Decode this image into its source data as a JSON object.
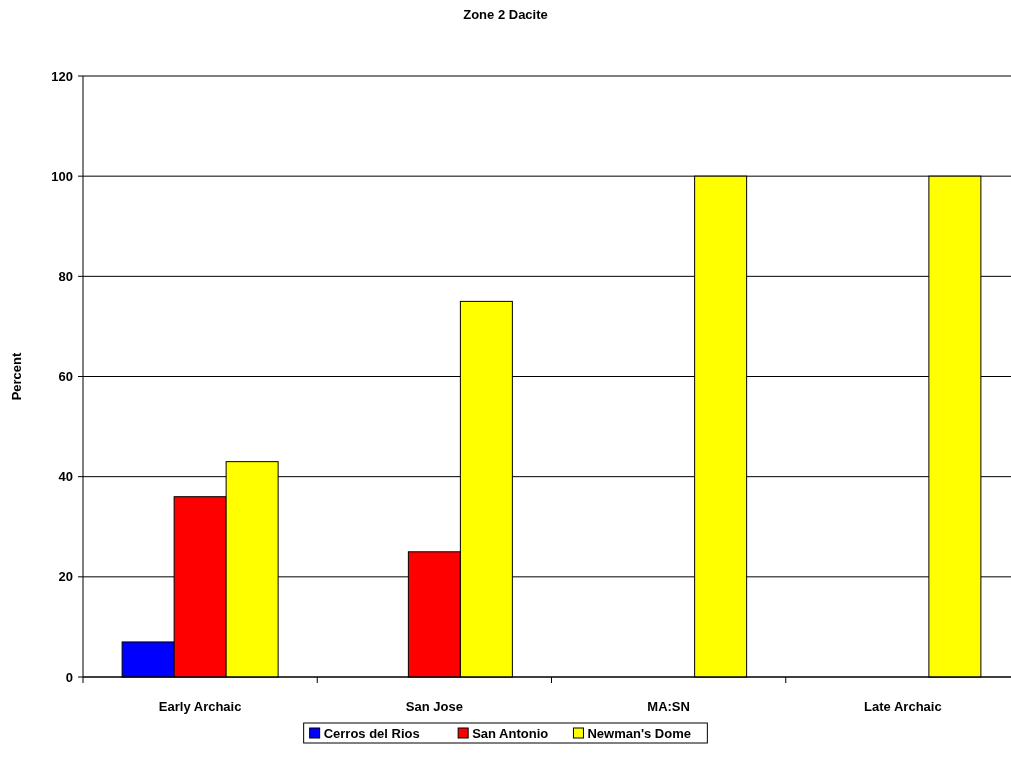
{
  "chart_data": {
    "type": "bar",
    "title": "Zone 2 Dacite",
    "ylabel": "Percent",
    "categories": [
      "Early Archaic",
      "San Jose",
      "MA:SN",
      "Late Archaic"
    ],
    "series": [
      {
        "name": "Cerros del Rios",
        "color": "#0000ff",
        "values": [
          7,
          null,
          null,
          null
        ]
      },
      {
        "name": "San Antonio",
        "color": "#ff0000",
        "values": [
          36,
          25,
          null,
          null
        ]
      },
      {
        "name": "Newman's Dome",
        "color": "#ffff00",
        "values": [
          43,
          75,
          100,
          100
        ]
      }
    ],
    "ylim": [
      0,
      120
    ],
    "yticks": [
      0,
      20,
      40,
      60,
      80,
      100,
      120
    ],
    "grid": "y",
    "legend": "bottom"
  }
}
